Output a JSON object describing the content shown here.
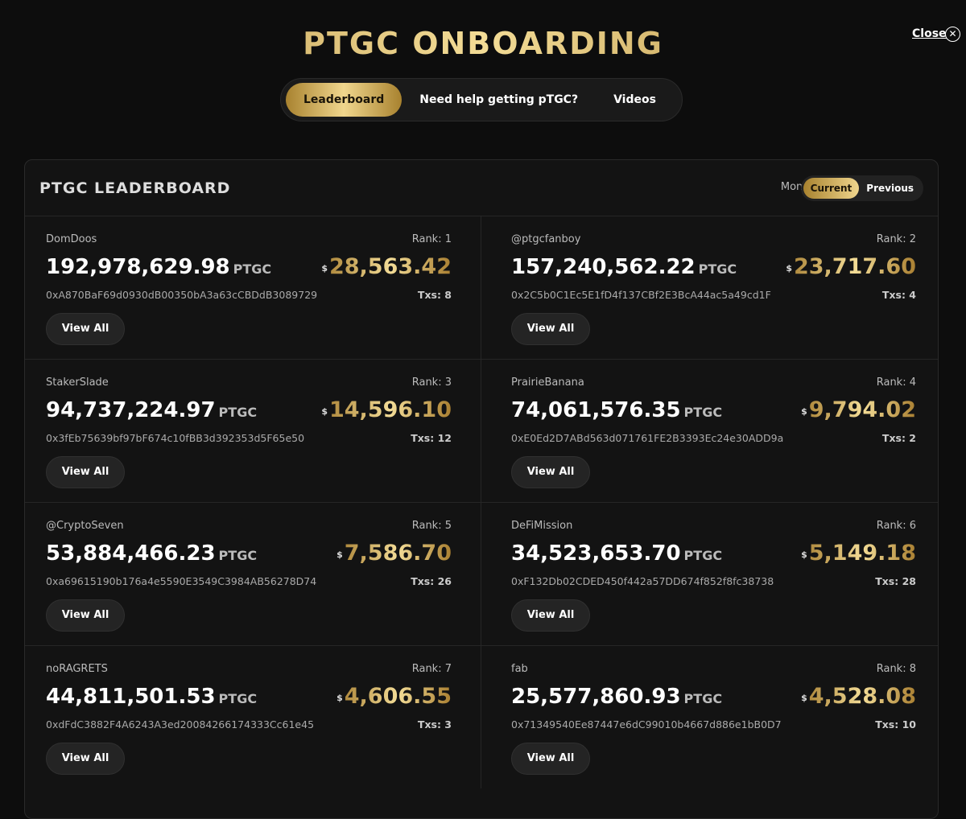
{
  "header": {
    "title": "PTGC ONBOARDING",
    "close": "Close"
  },
  "tabs": [
    "Leaderboard",
    "Need help getting pTGC?",
    "Videos"
  ],
  "leaderboard": {
    "title": "PTGC LEADERBOARD",
    "month_label": "Month:",
    "month_options": [
      "Current",
      "Previous"
    ],
    "entries": [
      {
        "name": "DomDoos",
        "rank": "Rank: 1",
        "amount": "192,978,629.98",
        "unit": "PTGC",
        "currency": "$",
        "usd": "28,563.42",
        "address": "0xA870BaF69d0930dB00350bA3a63cCBDdB3089729",
        "txs": "Txs: 8",
        "button": "View All"
      },
      {
        "name": "@ptgcfanboy",
        "rank": "Rank: 2",
        "amount": "157,240,562.22",
        "unit": "PTGC",
        "currency": "$",
        "usd": "23,717.60",
        "address": "0x2C5b0C1Ec5E1fD4f137CBf2E3BcA44ac5a49cd1F",
        "txs": "Txs: 4",
        "button": "View All"
      },
      {
        "name": "StakerSlade",
        "rank": "Rank: 3",
        "amount": "94,737,224.97",
        "unit": "PTGC",
        "currency": "$",
        "usd": "14,596.10",
        "address": "0x3fEb75639bf97bF674c10fBB3d392353d5F65e50",
        "txs": "Txs: 12",
        "button": "View All"
      },
      {
        "name": "PrairieBanana",
        "rank": "Rank: 4",
        "amount": "74,061,576.35",
        "unit": "PTGC",
        "currency": "$",
        "usd": "9,794.02",
        "address": "0xE0Ed2D7ABd563d071761FE2B3393Ec24e30ADD9a",
        "txs": "Txs: 2",
        "button": "View All"
      },
      {
        "name": "@CryptoSeven",
        "rank": "Rank: 5",
        "amount": "53,884,466.23",
        "unit": "PTGC",
        "currency": "$",
        "usd": "7,586.70",
        "address": "0xa69615190b176a4e5590E3549C3984AB56278D74",
        "txs": "Txs: 26",
        "button": "View All"
      },
      {
        "name": "DeFiMission",
        "rank": "Rank: 6",
        "amount": "34,523,653.70",
        "unit": "PTGC",
        "currency": "$",
        "usd": "5,149.18",
        "address": "0xF132Db02CDED450f442a57DD674f852f8fc38738",
        "txs": "Txs: 28",
        "button": "View All"
      },
      {
        "name": "noRAGRETS",
        "rank": "Rank: 7",
        "amount": "44,811,501.53",
        "unit": "PTGC",
        "currency": "$",
        "usd": "4,606.55",
        "address": "0xdFdC3882F4A6243A3ed20084266174333Cc61e45",
        "txs": "Txs: 3",
        "button": "View All"
      },
      {
        "name": "fab",
        "rank": "Rank: 8",
        "amount": "25,577,860.93",
        "unit": "PTGC",
        "currency": "$",
        "usd": "4,528.08",
        "address": "0x71349540Ee87447e6dC99010b4667d886e1bB0D7",
        "txs": "Txs: 10",
        "button": "View All"
      }
    ]
  }
}
